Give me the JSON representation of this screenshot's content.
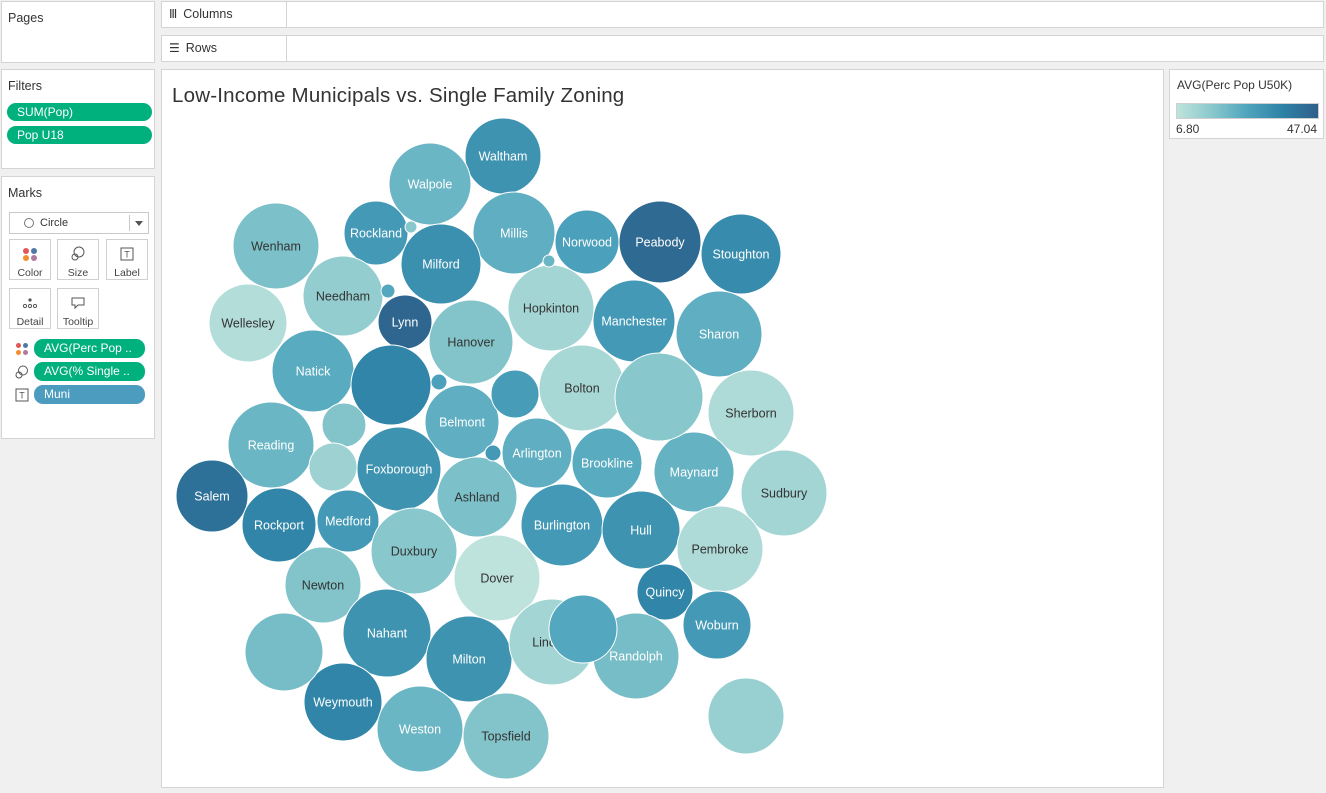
{
  "pages": {
    "title": "Pages"
  },
  "shelves": {
    "columns_label": "Columns",
    "rows_label": "Rows"
  },
  "filters": {
    "title": "Filters",
    "items": [
      "SUM(Pop)",
      "Pop U18"
    ]
  },
  "marks": {
    "title": "Marks",
    "mark_type": "Circle",
    "buttons": {
      "color": "Color",
      "size": "Size",
      "label": "Label",
      "detail": "Detail",
      "tooltip": "Tooltip"
    },
    "fields": [
      {
        "icon": "color-dots-icon",
        "label": "AVG(Perc Pop ..",
        "color": "#00b07d"
      },
      {
        "icon": "size-circles-icon",
        "label": "AVG(% Single ..",
        "color": "#00b07d"
      },
      {
        "icon": "label-text-icon",
        "label": "Muni",
        "color": "#4b9cbe"
      }
    ]
  },
  "viz": {
    "title": "Low-Income Municipals vs. Single Family Zoning"
  },
  "legend": {
    "title": "AVG(Perc Pop U50K)",
    "min": "6.80",
    "max": "47.04",
    "colors": [
      "#bfe3dc",
      "#89c8cc",
      "#4ea4bd",
      "#2e82a6",
      "#2f5f8a"
    ]
  },
  "chart_data": {
    "type": "packed-bubble",
    "title": "Low-Income Municipals vs. Single Family Zoning",
    "color_measure": "AVG(Perc Pop U50K)",
    "size_measure": "AVG(% Single ..",
    "label_field": "Muni",
    "color_range": [
      6.8,
      47.04
    ],
    "bubbles": [
      {
        "label": "Waltham",
        "color_value": 32
      },
      {
        "label": "Walpole",
        "color_value": 22
      },
      {
        "label": "Rockland",
        "color_value": 30
      },
      {
        "label": "Millis",
        "color_value": 24
      },
      {
        "label": "Norwood",
        "color_value": 28
      },
      {
        "label": "Peabody",
        "color_value": 44
      },
      {
        "label": "Stoughton",
        "color_value": 34
      },
      {
        "label": "Wenham",
        "color_value": 19
      },
      {
        "label": "Milford",
        "color_value": 33
      },
      {
        "label": "Needham",
        "color_value": 15
      },
      {
        "label": "Lynn",
        "color_value": 45
      },
      {
        "label": "Hopkinton",
        "color_value": 12
      },
      {
        "label": "Manchester",
        "color_value": 30
      },
      {
        "label": "Sharon",
        "color_value": 24
      },
      {
        "label": "Wellesley",
        "color_value": 9
      },
      {
        "label": "Hanover",
        "color_value": 18
      },
      {
        "label": "Natick",
        "color_value": 25
      },
      {
        "label": "Bolton",
        "color_value": 11
      },
      {
        "label": "Sherborn",
        "color_value": 10
      },
      {
        "label": "Reading",
        "color_value": 22
      },
      {
        "label": "Belmont",
        "color_value": 24
      },
      {
        "label": "Arlington",
        "color_value": 24
      },
      {
        "label": "Brookline",
        "color_value": 25
      },
      {
        "label": "Maynard",
        "color_value": 23
      },
      {
        "label": "Sudbury",
        "color_value": 12
      },
      {
        "label": "Salem",
        "color_value": 42
      },
      {
        "label": "Foxborough",
        "color_value": 32
      },
      {
        "label": "Ashland",
        "color_value": 19
      },
      {
        "label": "Rockport",
        "color_value": 36
      },
      {
        "label": "Medford",
        "color_value": 30
      },
      {
        "label": "Burlington",
        "color_value": 30
      },
      {
        "label": "Hull",
        "color_value": 32
      },
      {
        "label": "Pembroke",
        "color_value": 10
      },
      {
        "label": "Duxbury",
        "color_value": 17
      },
      {
        "label": "Dover",
        "color_value": 7
      },
      {
        "label": "Quincy",
        "color_value": 36
      },
      {
        "label": "Newton",
        "color_value": 18
      },
      {
        "label": "Woburn",
        "color_value": 30
      },
      {
        "label": "Nahant",
        "color_value": 32
      },
      {
        "label": "Milton",
        "color_value": 32
      },
      {
        "label": "Lincoln",
        "color_value": 12
      },
      {
        "label": "Randolph",
        "color_value": 20
      },
      {
        "label": "Weymouth",
        "color_value": 36
      },
      {
        "label": "Weston",
        "color_value": 22
      },
      {
        "label": "Topsfield",
        "color_value": 18
      },
      {
        "label": "",
        "color_value": 20
      },
      {
        "label": "",
        "color_value": 36
      },
      {
        "label": "",
        "color_value": 29
      },
      {
        "label": "",
        "color_value": 18
      },
      {
        "label": "",
        "color_value": 13
      },
      {
        "label": "",
        "color_value": 26
      },
      {
        "label": "",
        "color_value": 17
      },
      {
        "label": "",
        "color_value": 14
      },
      {
        "label": "",
        "color_value": 17
      },
      {
        "label": "",
        "color_value": 26
      },
      {
        "label": "",
        "color_value": 28
      },
      {
        "label": "",
        "color_value": 30
      },
      {
        "label": "",
        "color_value": 22
      },
      {
        "label": "",
        "color_value": 13
      }
    ]
  }
}
